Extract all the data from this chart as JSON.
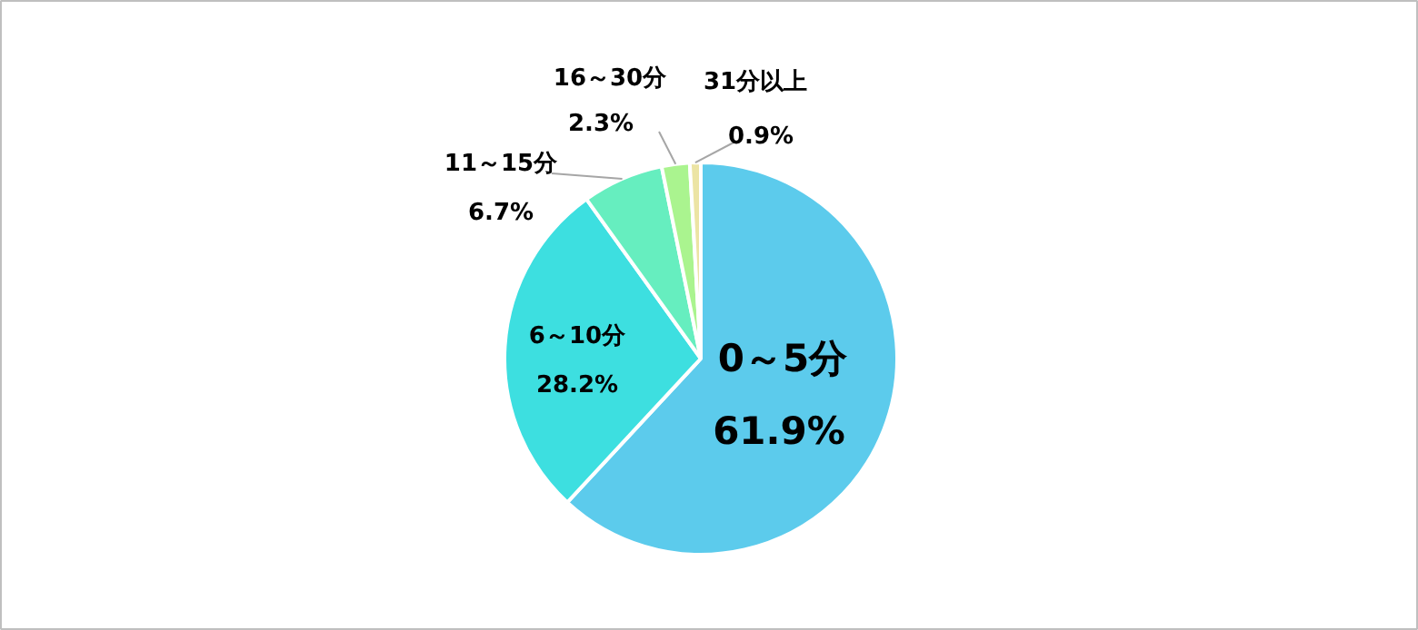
{
  "chart_data": {
    "type": "pie",
    "categories": [
      "0～5分",
      "6～10分",
      "11～15分",
      "16～30分",
      "31分以上"
    ],
    "values": [
      61.9,
      28.2,
      6.7,
      2.3,
      0.9
    ],
    "value_labels": [
      "61.9%",
      "28.2%",
      "6.7%",
      "2.3%",
      "0.9%"
    ],
    "colors": [
      "#5ccbec",
      "#3ddfe0",
      "#66eebf",
      "#aaf48f",
      "#ece4a4"
    ]
  }
}
